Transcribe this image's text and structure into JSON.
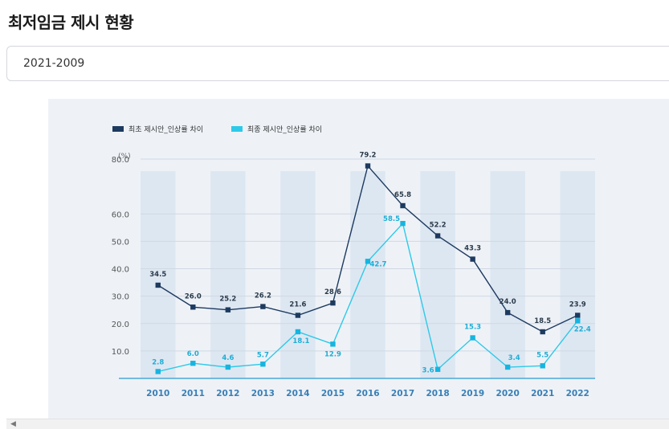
{
  "page": {
    "title": "최저임금 제시 현황"
  },
  "period_select": {
    "value": "2021-2009"
  },
  "colors": {
    "series1": "#1d3a5f",
    "series2": "#2ec9e8",
    "axis": "#4aa8d8",
    "band": "#dde7f2"
  },
  "chart_data": {
    "type": "line",
    "title": "",
    "ylabel": "(%)",
    "xlabel": "",
    "ylim": [
      0,
      80
    ],
    "yticks": [
      "10.0",
      "20.0",
      "30.0",
      "40.0",
      "50.0",
      "60.0",
      "80.0"
    ],
    "categories": [
      "2010",
      "2011",
      "2012",
      "2013",
      "2014",
      "2015",
      "2016",
      "2017",
      "2018",
      "2019",
      "2020",
      "2021",
      "2022"
    ],
    "legend_position": "top-left",
    "series": [
      {
        "name": "최초 제시안_인상률 차이",
        "color": "#1d3a5f",
        "values": [
          34.5,
          26.0,
          25.2,
          26.2,
          21.6,
          28.6,
          79.2,
          65.8,
          52.2,
          43.3,
          24.0,
          18.5,
          23.9
        ],
        "labels": [
          "34.5",
          "26.0",
          "25.2",
          "26.2",
          "21.6",
          "28.6",
          "79.2",
          "65.8",
          "52.2",
          "43.3",
          "24.0",
          "18.5",
          "23.9"
        ],
        "plotted": [
          34,
          26,
          25,
          26.2,
          23,
          27.5,
          77.5,
          63,
          52,
          43.5,
          24,
          17,
          23
        ]
      },
      {
        "name": "최종 제시안_인상률 차이",
        "color": "#2ec9e8",
        "values": [
          2.8,
          6.0,
          4.6,
          5.7,
          18.1,
          12.9,
          42.7,
          58.5,
          3.6,
          15.3,
          3.4,
          5.5,
          22.4
        ],
        "labels": [
          "2.8",
          "6.0",
          "4.6",
          "5.7",
          "18.1",
          "12.9",
          "42.7",
          "58.5",
          "3.6",
          "15.3",
          "3.4",
          "5.5",
          "22.4"
        ],
        "plotted": [
          2.5,
          5.5,
          4.1,
          5.2,
          17,
          12.5,
          42.7,
          56.5,
          3.3,
          14.8,
          4.1,
          4.6,
          21
        ]
      }
    ]
  }
}
